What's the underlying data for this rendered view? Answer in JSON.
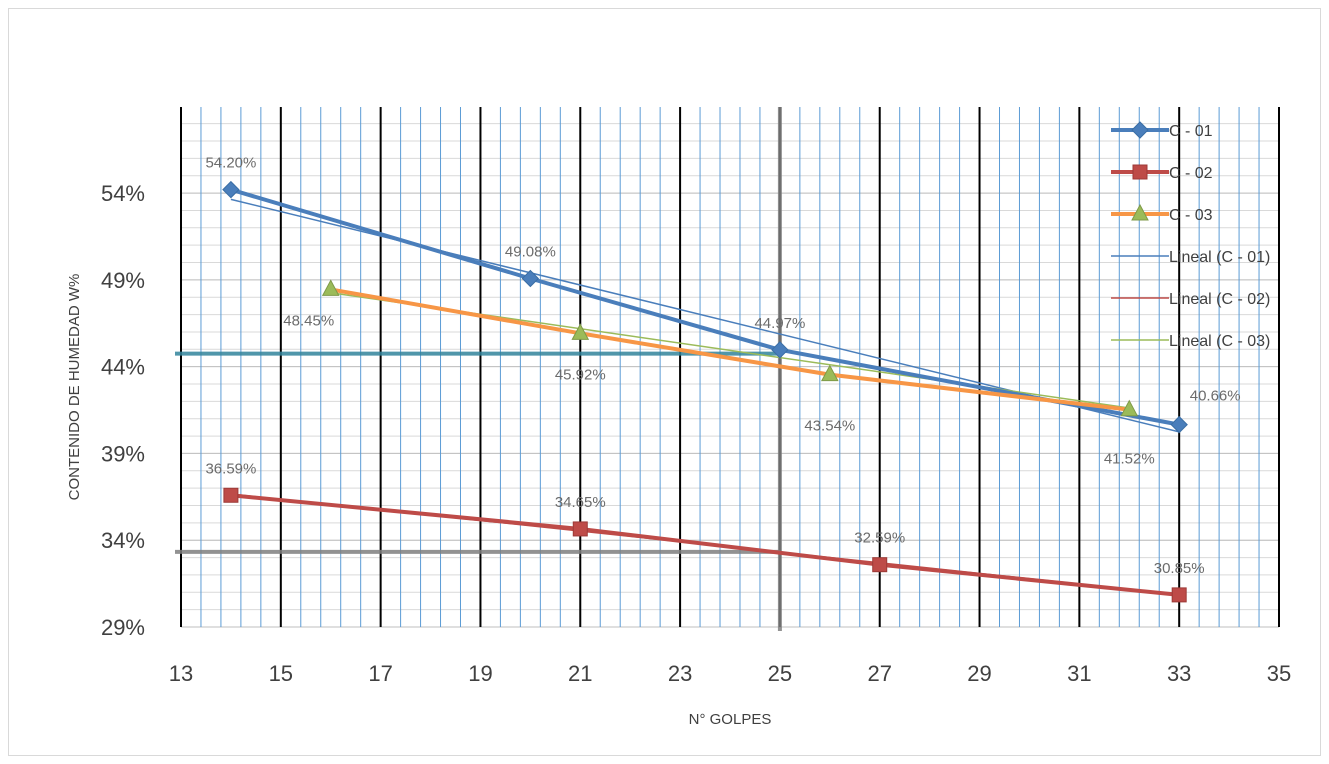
{
  "chart_data": {
    "type": "line",
    "title": "",
    "xlabel": "N° GOLPES",
    "ylabel": "CONTENIDO DE HUMEDAD W%",
    "xlim": [
      13,
      35
    ],
    "ylim": [
      0.29,
      0.5896
    ],
    "x_ticks": [
      13,
      15,
      17,
      19,
      21,
      23,
      25,
      27,
      29,
      31,
      33,
      35
    ],
    "x_tick_labels": [
      "13",
      "15",
      "17",
      "19",
      "21",
      "23",
      "25",
      "27",
      "29",
      "31",
      "33",
      "35"
    ],
    "y_ticks": [
      0.29,
      0.34,
      0.39,
      0.44,
      0.49,
      0.54
    ],
    "y_tick_labels": [
      "29%",
      "34%",
      "39%",
      "44%",
      "49%",
      "54%"
    ],
    "grid": true,
    "legend_position": "right",
    "series": [
      {
        "name": "C - 01",
        "color": "#4a7ebb",
        "marker": "diamond",
        "x": [
          14,
          20,
          25,
          33
        ],
        "y": [
          0.542,
          0.4908,
          0.4497,
          0.4066
        ],
        "labels": [
          "54.20%",
          "49.08%",
          "44.97%",
          "40.66%"
        ]
      },
      {
        "name": "C - 02",
        "color": "#be4b48",
        "marker": "square",
        "x": [
          14,
          21,
          27,
          33
        ],
        "y": [
          0.3659,
          0.3465,
          0.3259,
          0.3085
        ],
        "labels": [
          "36.59%",
          "34.65%",
          "32.59%",
          "30.85%"
        ]
      },
      {
        "name": "C - 03",
        "color": "#f79646",
        "marker": "triangle",
        "marker_color": "#9bbb59",
        "x": [
          16,
          21,
          26,
          32
        ],
        "y": [
          0.4845,
          0.4592,
          0.4354,
          0.4152
        ],
        "labels": [
          "48.45%",
          "45.92%",
          "43.54%",
          "41.52%"
        ]
      },
      {
        "name": "Lineal (C - 01)",
        "color": "#4a7ebb",
        "trend_of": "C - 01",
        "x": [
          14,
          33
        ],
        "y": [
          0.5364,
          0.4024
        ]
      },
      {
        "name": "Lineal (C - 02)",
        "color": "#be4b48",
        "trend_of": "C - 02",
        "x": [
          14,
          33
        ],
        "y": [
          0.3666,
          0.3087
        ]
      },
      {
        "name": "Lineal (C - 03)",
        "color": "#9bbb59",
        "trend_of": "C - 03",
        "x": [
          16,
          32
        ],
        "y": [
          0.4826,
          0.4162
        ]
      }
    ],
    "reference_lines": [
      {
        "orientation": "horizontal",
        "value": 0.4475,
        "x_to": 25,
        "color": "#31849b"
      },
      {
        "orientation": "horizontal",
        "value": 0.3333,
        "x_to": 25,
        "color": "#7f7f7f"
      },
      {
        "orientation": "vertical",
        "value": 25,
        "color": "#7f7f7f"
      }
    ]
  }
}
